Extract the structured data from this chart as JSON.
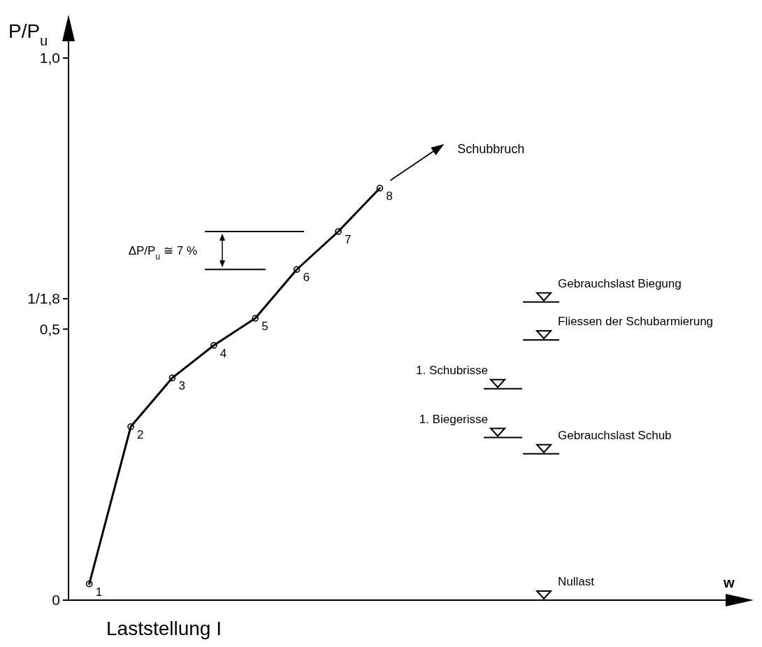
{
  "chart_data": {
    "type": "line",
    "title": "Laststellung I",
    "xlabel": "w",
    "ylabel": "P/P$_{u}$",
    "categories": [
      null,
      null,
      null,
      null,
      null,
      null,
      null,
      null,
      null,
      null,
      null,
      null,
      null,
      null,
      null,
      null
    ],
    "values": [
      0.03,
      0.32,
      0.41,
      0.47,
      0.52,
      0.61,
      0.68,
      0.76,
      null,
      null,
      null,
      null,
      null,
      null,
      null,
      null
    ],
    "color": "#000000",
    "ylim": [
      0,
      1.08
    ],
    "yticks": [
      0,
      {
        "value": 0.5,
        "label": "0,5"
      },
      {
        "value": 0.556,
        "label": "1/1,8"
      },
      {
        "value": 1.0,
        "label": "1,0"
      }
    ],
    "marker": "circle",
    "line_style": "solid",
    "ref_lines": [
      {
        "axis": "y",
        "value": 0.55,
        "label": "Gebrauchslast Biegung"
      },
      {
        "axis": "y",
        "value": 0.48,
        "label": "Fliessen der Schubarmierung"
      },
      {
        "axis": "y",
        "value": 0.39,
        "label": "1. Schubrisse"
      },
      {
        "axis": "y",
        "value": 0.3,
        "label": "1. Biegerisse"
      },
      {
        "axis": "y",
        "value": 0.27,
        "label": "Gebrauchslast Schub"
      },
      {
        "axis": "y",
        "value": 0,
        "label": "Nullast"
      },
      {
        "axis": "y",
        "value": 0.68
      },
      {
        "axis": "y",
        "value": 0.61
      }
    ],
    "annotations": [
      "ΔP/P$_{u}$ ≅ 7 %",
      "Schubbruch",
      "1",
      "2",
      "3",
      "4",
      "5",
      "6",
      "7",
      "8"
    ]
  }
}
